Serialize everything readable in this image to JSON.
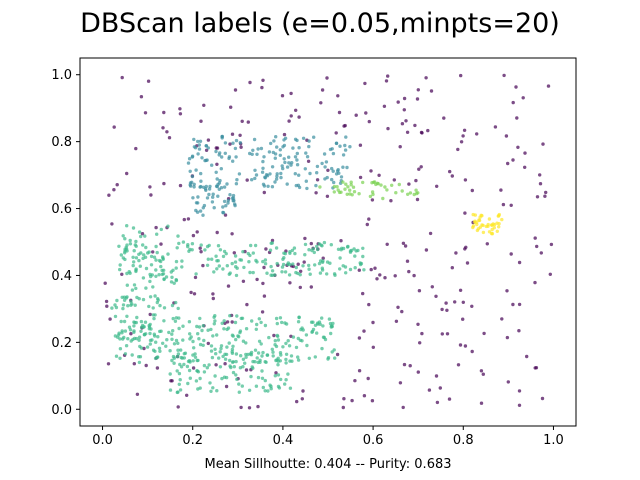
{
  "chart_data": {
    "type": "scatter",
    "title": "DBScan labels (e=0.05,minpts=20)",
    "xlabel": "Mean Sillhoutte: 0.404 -- Purity: 0.683",
    "ylabel": "",
    "xlim": [
      -0.05,
      1.05
    ],
    "ylim": [
      -0.05,
      1.05
    ],
    "x_ticks": [
      "0.0",
      "0.2",
      "0.4",
      "0.6",
      "0.8",
      "1.0"
    ],
    "y_ticks": [
      "0.0",
      "0.2",
      "0.4",
      "0.6",
      "0.8",
      "1.0"
    ],
    "grid": false,
    "legend": "none",
    "point_alpha": 0.7,
    "series": [
      {
        "label_id": -1,
        "color": "#440154",
        "regions": [
          {
            "shape": "rect",
            "x": [
              0.0,
              1.0
            ],
            "y": [
              0.0,
              1.0
            ],
            "n": 330
          }
        ]
      },
      {
        "label_id": 0,
        "color": "#3b8ea0",
        "regions": [
          {
            "shape": "rect",
            "x": [
              0.19,
              0.55
            ],
            "y": [
              0.66,
              0.82
            ],
            "n": 170
          },
          {
            "shape": "rect",
            "x": [
              0.2,
              0.3
            ],
            "y": [
              0.58,
              0.68
            ],
            "n": 45
          }
        ]
      },
      {
        "label_id": 1,
        "color": "#3cb98a",
        "regions": [
          {
            "shape": "rect",
            "x": [
              0.03,
              0.58
            ],
            "y": [
              0.4,
              0.5
            ],
            "n": 190
          },
          {
            "shape": "rect",
            "x": [
              0.03,
              0.17
            ],
            "y": [
              0.3,
              0.55
            ],
            "n": 70
          },
          {
            "shape": "rect",
            "x": [
              0.03,
              0.52
            ],
            "y": [
              0.14,
              0.28
            ],
            "n": 240
          },
          {
            "shape": "rect",
            "x": [
              0.15,
              0.42
            ],
            "y": [
              0.05,
              0.17
            ],
            "n": 110
          },
          {
            "shape": "rect",
            "x": [
              0.02,
              0.12
            ],
            "y": [
              0.2,
              0.34
            ],
            "n": 30
          }
        ]
      },
      {
        "label_id": 2,
        "color": "#7ad151",
        "regions": [
          {
            "shape": "rect",
            "x": [
              0.5,
              0.7
            ],
            "y": [
              0.63,
              0.68
            ],
            "n": 36
          },
          {
            "shape": "rect",
            "x": [
              0.48,
              0.56
            ],
            "y": [
              0.63,
              0.67
            ],
            "n": 8
          }
        ]
      },
      {
        "label_id": 3,
        "color": "#fde725",
        "regions": [
          {
            "shape": "ellipse",
            "cx": 0.85,
            "cy": 0.56,
            "rx": 0.04,
            "ry": 0.04,
            "n": 40
          }
        ]
      }
    ]
  }
}
